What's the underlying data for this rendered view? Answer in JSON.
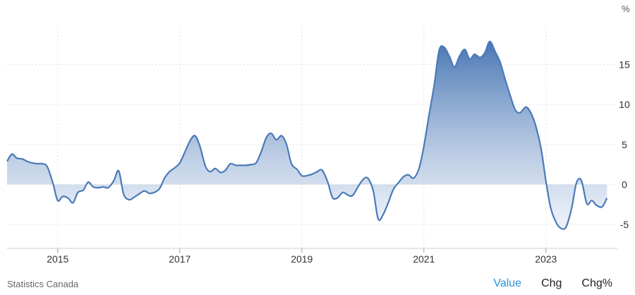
{
  "source": "Statistics Canada",
  "tabs": [
    {
      "label": "Value",
      "active": true
    },
    {
      "label": "Chg",
      "active": false
    },
    {
      "label": "Chg%",
      "active": false
    }
  ],
  "colors": {
    "line": "#4a7ab8",
    "fill_top": "#3f6fb0",
    "fill_bottom": "#e8eef8",
    "grid": "#e3e3e3",
    "active_tab": "#2b8fd6"
  },
  "chart_data": {
    "type": "area",
    "unit_label": "%",
    "xlim": [
      2014.17,
      2024.17
    ],
    "ylim": [
      -8,
      20
    ],
    "x_ticks": [
      {
        "value": 2015,
        "label": "2015"
      },
      {
        "value": 2017,
        "label": "2017"
      },
      {
        "value": 2019,
        "label": "2019"
      },
      {
        "value": 2021,
        "label": "2021"
      },
      {
        "value": 2023,
        "label": "2023"
      }
    ],
    "y_ticks": [
      {
        "value": -5,
        "label": "-5"
      },
      {
        "value": 0,
        "label": "0"
      },
      {
        "value": 5,
        "label": "5"
      },
      {
        "value": 10,
        "label": "10"
      },
      {
        "value": 15,
        "label": "15"
      }
    ],
    "grid": true,
    "series": [
      {
        "values": [
          [
            2014.17,
            2.9
          ],
          [
            2014.25,
            3.8
          ],
          [
            2014.33,
            3.3
          ],
          [
            2014.42,
            3.2
          ],
          [
            2014.5,
            2.9
          ],
          [
            2014.58,
            2.7
          ],
          [
            2014.67,
            2.6
          ],
          [
            2014.75,
            2.6
          ],
          [
            2014.83,
            2.2
          ],
          [
            2014.92,
            0.2
          ],
          [
            2015.0,
            -2.0
          ],
          [
            2015.08,
            -1.5
          ],
          [
            2015.17,
            -1.7
          ],
          [
            2015.25,
            -2.3
          ],
          [
            2015.33,
            -1.0
          ],
          [
            2015.42,
            -0.7
          ],
          [
            2015.5,
            0.3
          ],
          [
            2015.58,
            -0.3
          ],
          [
            2015.67,
            -0.4
          ],
          [
            2015.75,
            -0.3
          ],
          [
            2015.83,
            -0.4
          ],
          [
            2015.92,
            0.5
          ],
          [
            2016.0,
            1.7
          ],
          [
            2016.08,
            -1.2
          ],
          [
            2016.17,
            -1.9
          ],
          [
            2016.25,
            -1.6
          ],
          [
            2016.33,
            -1.2
          ],
          [
            2016.42,
            -0.8
          ],
          [
            2016.5,
            -1.1
          ],
          [
            2016.58,
            -1.0
          ],
          [
            2016.67,
            -0.5
          ],
          [
            2016.75,
            0.8
          ],
          [
            2016.83,
            1.6
          ],
          [
            2016.92,
            2.1
          ],
          [
            2017.0,
            2.7
          ],
          [
            2017.08,
            4.0
          ],
          [
            2017.17,
            5.5
          ],
          [
            2017.25,
            6.1
          ],
          [
            2017.33,
            4.8
          ],
          [
            2017.42,
            2.3
          ],
          [
            2017.5,
            1.6
          ],
          [
            2017.58,
            2.0
          ],
          [
            2017.67,
            1.5
          ],
          [
            2017.75,
            1.8
          ],
          [
            2017.83,
            2.6
          ],
          [
            2017.92,
            2.4
          ],
          [
            2018.0,
            2.4
          ],
          [
            2018.08,
            2.4
          ],
          [
            2018.17,
            2.5
          ],
          [
            2018.25,
            2.7
          ],
          [
            2018.33,
            4.0
          ],
          [
            2018.42,
            5.9
          ],
          [
            2018.5,
            6.4
          ],
          [
            2018.58,
            5.6
          ],
          [
            2018.67,
            6.1
          ],
          [
            2018.75,
            5.0
          ],
          [
            2018.83,
            2.6
          ],
          [
            2018.92,
            1.9
          ],
          [
            2019.0,
            1.1
          ],
          [
            2019.08,
            1.1
          ],
          [
            2019.17,
            1.3
          ],
          [
            2019.25,
            1.6
          ],
          [
            2019.33,
            1.8
          ],
          [
            2019.42,
            0.4
          ],
          [
            2019.5,
            -1.6
          ],
          [
            2019.58,
            -1.7
          ],
          [
            2019.67,
            -1.0
          ],
          [
            2019.75,
            -1.3
          ],
          [
            2019.83,
            -1.4
          ],
          [
            2019.92,
            -0.3
          ],
          [
            2020.0,
            0.6
          ],
          [
            2020.08,
            0.8
          ],
          [
            2020.17,
            -0.8
          ],
          [
            2020.25,
            -4.3
          ],
          [
            2020.33,
            -3.8
          ],
          [
            2020.42,
            -2.2
          ],
          [
            2020.5,
            -0.6
          ],
          [
            2020.58,
            0.2
          ],
          [
            2020.67,
            1.0
          ],
          [
            2020.75,
            1.2
          ],
          [
            2020.83,
            0.8
          ],
          [
            2020.92,
            2.0
          ],
          [
            2021.0,
            4.8
          ],
          [
            2021.08,
            8.5
          ],
          [
            2021.17,
            12.5
          ],
          [
            2021.25,
            16.8
          ],
          [
            2021.33,
            17.2
          ],
          [
            2021.42,
            16.0
          ],
          [
            2021.5,
            14.7
          ],
          [
            2021.58,
            16.0
          ],
          [
            2021.67,
            16.9
          ],
          [
            2021.75,
            15.7
          ],
          [
            2021.83,
            16.3
          ],
          [
            2021.92,
            15.9
          ],
          [
            2022.0,
            16.5
          ],
          [
            2022.08,
            17.9
          ],
          [
            2022.17,
            16.6
          ],
          [
            2022.25,
            15.3
          ],
          [
            2022.33,
            13.2
          ],
          [
            2022.42,
            11.0
          ],
          [
            2022.5,
            9.3
          ],
          [
            2022.58,
            9.0
          ],
          [
            2022.67,
            9.7
          ],
          [
            2022.75,
            9.0
          ],
          [
            2022.83,
            7.4
          ],
          [
            2022.92,
            4.5
          ],
          [
            2023.0,
            0.4
          ],
          [
            2023.08,
            -3.0
          ],
          [
            2023.17,
            -4.8
          ],
          [
            2023.25,
            -5.5
          ],
          [
            2023.33,
            -5.3
          ],
          [
            2023.42,
            -3.0
          ],
          [
            2023.5,
            0.2
          ],
          [
            2023.58,
            0.5
          ],
          [
            2023.67,
            -2.4
          ],
          [
            2023.75,
            -2.0
          ],
          [
            2023.83,
            -2.6
          ],
          [
            2023.92,
            -2.8
          ],
          [
            2024.0,
            -1.7
          ]
        ]
      }
    ]
  }
}
